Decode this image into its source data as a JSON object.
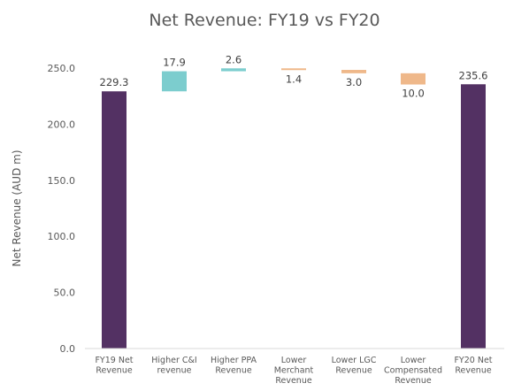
{
  "chart_data": {
    "type": "bar",
    "title": "Net Revenue: FY19 vs FY20",
    "xlabel": "",
    "ylabel": "Net Revenue (AUD m)",
    "ylim": [
      0,
      250
    ],
    "yticks": [
      "0.0",
      "50.0",
      "100.0",
      "150.0",
      "200.0",
      "250.0"
    ],
    "ytick_values": [
      0,
      50,
      100,
      150,
      200,
      250
    ],
    "grid": false,
    "legend": "none",
    "categories": [
      [
        "FY19 Net",
        "Revenue"
      ],
      [
        "Higher C&I",
        "revenue"
      ],
      [
        "Higher PPA",
        "Revenue"
      ],
      [
        "Lower",
        "Merchant",
        "Revenue"
      ],
      [
        "Lower LGC",
        "Revenue"
      ],
      [
        "Lower",
        "Compensated",
        "Revenue"
      ],
      [
        "FY20 Net",
        "Revenue"
      ]
    ],
    "bars": [
      {
        "kind": "total",
        "start": 0,
        "end": 229.3,
        "label": "229.3",
        "color": "#533163"
      },
      {
        "kind": "increase",
        "start": 229.3,
        "end": 247.2,
        "label": "17.9",
        "color": "#7ccdce"
      },
      {
        "kind": "increase",
        "start": 247.2,
        "end": 249.8,
        "label": "2.6",
        "color": "#7ccdce"
      },
      {
        "kind": "decrease",
        "start": 249.8,
        "end": 248.4,
        "label": "1.4",
        "color": "#efb88a"
      },
      {
        "kind": "decrease",
        "start": 248.4,
        "end": 245.4,
        "label": "3.0",
        "color": "#efb88a"
      },
      {
        "kind": "decrease",
        "start": 245.4,
        "end": 235.4,
        "label": "10.0",
        "color": "#efb88a"
      },
      {
        "kind": "total",
        "start": 0,
        "end": 235.6,
        "label": "235.6",
        "color": "#533163"
      }
    ]
  }
}
